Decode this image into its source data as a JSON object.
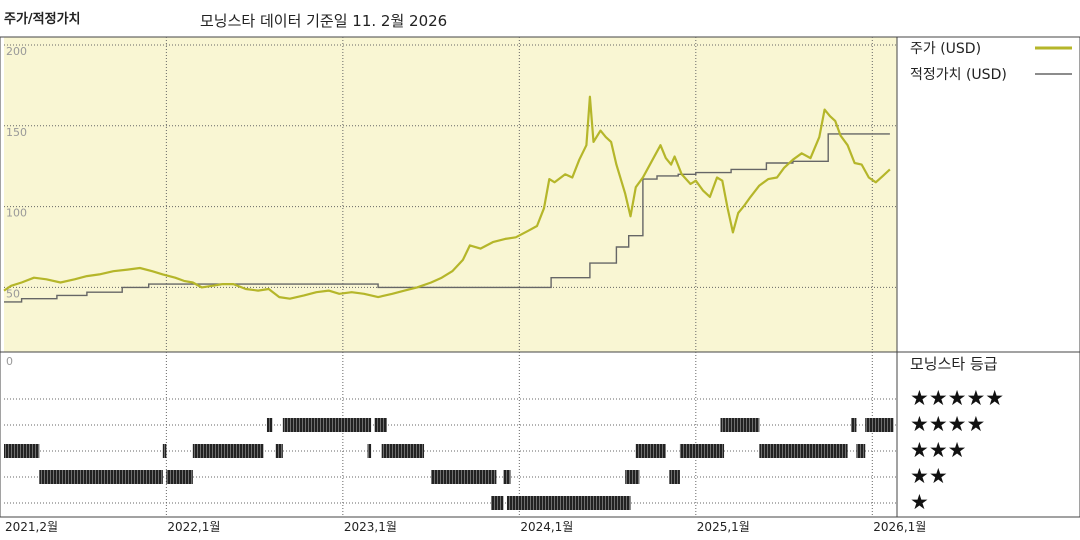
{
  "header": {
    "title": "주가/적정가치",
    "subtitle": "모닝스타 데이터 기준일 11. 2월 2026"
  },
  "legend": {
    "price_label": "주가 (USD)",
    "fair_label": "적정가치 (USD)",
    "rating_title": "모닝스타 등급"
  },
  "colors": {
    "price": "#b5b62a",
    "fair": "#666666",
    "panel_bg": "#f9f6d3",
    "rating_bar": "#222222"
  },
  "chart_data": {
    "type": "line",
    "y_ticks": [
      {
        "v": 200,
        "label": "200"
      },
      {
        "v": 150,
        "label": "150"
      },
      {
        "v": 100,
        "label": "100"
      },
      {
        "v": 50,
        "label": "50"
      }
    ],
    "y_zero_label": "0",
    "ylim": [
      10,
      200
    ],
    "xlim": [
      2021.08,
      2026.14
    ],
    "x_ticks": [
      {
        "v": 2021.08,
        "label": "2021,2월"
      },
      {
        "v": 2022.0,
        "label": "2022,1월"
      },
      {
        "v": 2023.0,
        "label": "2023,1월"
      },
      {
        "v": 2024.0,
        "label": "2024,1월"
      },
      {
        "v": 2025.0,
        "label": "2025,1월"
      },
      {
        "v": 2026.0,
        "label": "2026,1월"
      }
    ],
    "grid": true,
    "series": [
      {
        "name": "주가 (USD)",
        "points": [
          [
            2021.08,
            48
          ],
          [
            2021.12,
            51
          ],
          [
            2021.18,
            53
          ],
          [
            2021.25,
            56
          ],
          [
            2021.32,
            55
          ],
          [
            2021.4,
            53
          ],
          [
            2021.48,
            55
          ],
          [
            2021.55,
            57
          ],
          [
            2021.62,
            58
          ],
          [
            2021.7,
            60
          ],
          [
            2021.78,
            61
          ],
          [
            2021.85,
            62
          ],
          [
            2021.92,
            60
          ],
          [
            2021.98,
            58
          ],
          [
            2022.05,
            56
          ],
          [
            2022.1,
            54
          ],
          [
            2022.15,
            53
          ],
          [
            2022.2,
            50
          ],
          [
            2022.26,
            51
          ],
          [
            2022.32,
            52
          ],
          [
            2022.38,
            52
          ],
          [
            2022.45,
            49
          ],
          [
            2022.52,
            48
          ],
          [
            2022.58,
            49
          ],
          [
            2022.64,
            44
          ],
          [
            2022.7,
            43
          ],
          [
            2022.78,
            45
          ],
          [
            2022.85,
            47
          ],
          [
            2022.92,
            48
          ],
          [
            2022.98,
            46
          ],
          [
            2023.05,
            47
          ],
          [
            2023.12,
            46
          ],
          [
            2023.2,
            44
          ],
          [
            2023.28,
            46
          ],
          [
            2023.35,
            48
          ],
          [
            2023.42,
            50
          ],
          [
            2023.5,
            53
          ],
          [
            2023.56,
            56
          ],
          [
            2023.62,
            60
          ],
          [
            2023.68,
            67
          ],
          [
            2023.72,
            76
          ],
          [
            2023.78,
            74
          ],
          [
            2023.85,
            78
          ],
          [
            2023.92,
            80
          ],
          [
            2023.98,
            81
          ],
          [
            2024.05,
            85
          ],
          [
            2024.1,
            88
          ],
          [
            2024.14,
            99
          ],
          [
            2024.17,
            117
          ],
          [
            2024.2,
            115
          ],
          [
            2024.26,
            120
          ],
          [
            2024.3,
            118
          ],
          [
            2024.34,
            129
          ],
          [
            2024.38,
            138
          ],
          [
            2024.4,
            168
          ],
          [
            2024.42,
            140
          ],
          [
            2024.46,
            147
          ],
          [
            2024.49,
            143
          ],
          [
            2024.52,
            140
          ],
          [
            2024.55,
            126
          ],
          [
            2024.6,
            108
          ],
          [
            2024.63,
            94
          ],
          [
            2024.66,
            112
          ],
          [
            2024.7,
            118
          ],
          [
            2024.75,
            128
          ],
          [
            2024.8,
            138
          ],
          [
            2024.83,
            130
          ],
          [
            2024.86,
            126
          ],
          [
            2024.88,
            131
          ],
          [
            2024.92,
            120
          ],
          [
            2024.97,
            114
          ],
          [
            2025.0,
            116
          ],
          [
            2025.04,
            110
          ],
          [
            2025.08,
            106
          ],
          [
            2025.12,
            118
          ],
          [
            2025.15,
            116
          ],
          [
            2025.18,
            99
          ],
          [
            2025.21,
            84
          ],
          [
            2025.24,
            96
          ],
          [
            2025.27,
            100
          ],
          [
            2025.31,
            106
          ],
          [
            2025.36,
            113
          ],
          [
            2025.41,
            117
          ],
          [
            2025.46,
            118
          ],
          [
            2025.5,
            124
          ],
          [
            2025.55,
            129
          ],
          [
            2025.6,
            133
          ],
          [
            2025.65,
            130
          ],
          [
            2025.7,
            143
          ],
          [
            2025.73,
            160
          ],
          [
            2025.76,
            156
          ],
          [
            2025.79,
            153
          ],
          [
            2025.82,
            144
          ],
          [
            2025.86,
            138
          ],
          [
            2025.9,
            127
          ],
          [
            2025.94,
            126
          ],
          [
            2025.98,
            118
          ],
          [
            2026.02,
            115
          ],
          [
            2026.06,
            119
          ],
          [
            2026.1,
            123
          ]
        ]
      },
      {
        "name": "적정가치 (USD)",
        "points": [
          [
            2021.08,
            41
          ],
          [
            2021.18,
            43
          ],
          [
            2021.38,
            45
          ],
          [
            2021.55,
            47
          ],
          [
            2021.75,
            50
          ],
          [
            2021.9,
            52
          ],
          [
            2022.05,
            52
          ],
          [
            2023.05,
            52
          ],
          [
            2023.2,
            50
          ],
          [
            2024.1,
            50
          ],
          [
            2024.18,
            56
          ],
          [
            2024.4,
            65
          ],
          [
            2024.55,
            75
          ],
          [
            2024.62,
            82
          ],
          [
            2024.7,
            117
          ],
          [
            2024.78,
            119
          ],
          [
            2024.9,
            120
          ],
          [
            2025.0,
            121
          ],
          [
            2025.2,
            123
          ],
          [
            2025.4,
            127
          ],
          [
            2025.55,
            128
          ],
          [
            2025.75,
            145
          ],
          [
            2026.1,
            145
          ]
        ]
      }
    ],
    "rating": {
      "levels": [
        5,
        4,
        3,
        2,
        1
      ],
      "stars": [
        "★★★★★",
        "★★★★",
        "★★★",
        "★★",
        "★"
      ],
      "segments": [
        {
          "level": 3,
          "start": 2021.08,
          "end": 2021.28
        },
        {
          "level": 2,
          "start": 2021.28,
          "end": 2021.98
        },
        {
          "level": 2,
          "start": 2022.0,
          "end": 2022.15
        },
        {
          "level": 3,
          "start": 2021.98,
          "end": 2022.0
        },
        {
          "level": 3,
          "start": 2022.15,
          "end": 2022.55
        },
        {
          "level": 4,
          "start": 2022.57,
          "end": 2022.6
        },
        {
          "level": 3,
          "start": 2022.62,
          "end": 2022.66
        },
        {
          "level": 4,
          "start": 2022.66,
          "end": 2023.16
        },
        {
          "level": 4,
          "start": 2023.18,
          "end": 2023.25
        },
        {
          "level": 3,
          "start": 2023.14,
          "end": 2023.16
        },
        {
          "level": 3,
          "start": 2023.22,
          "end": 2023.46
        },
        {
          "level": 2,
          "start": 2023.5,
          "end": 2023.87
        },
        {
          "level": 2,
          "start": 2023.91,
          "end": 2023.95
        },
        {
          "level": 1,
          "start": 2023.84,
          "end": 2023.91
        },
        {
          "level": 1,
          "start": 2023.93,
          "end": 2024.63
        },
        {
          "level": 2,
          "start": 2024.6,
          "end": 2024.68
        },
        {
          "level": 3,
          "start": 2024.66,
          "end": 2024.83
        },
        {
          "level": 2,
          "start": 2024.85,
          "end": 2024.91
        },
        {
          "level": 3,
          "start": 2024.91,
          "end": 2025.16
        },
        {
          "level": 4,
          "start": 2025.14,
          "end": 2025.36
        },
        {
          "level": 3,
          "start": 2025.36,
          "end": 2025.86
        },
        {
          "level": 4,
          "start": 2025.88,
          "end": 2025.91
        },
        {
          "level": 3,
          "start": 2025.91,
          "end": 2025.96
        },
        {
          "level": 4,
          "start": 2025.96,
          "end": 2026.12
        }
      ]
    }
  }
}
